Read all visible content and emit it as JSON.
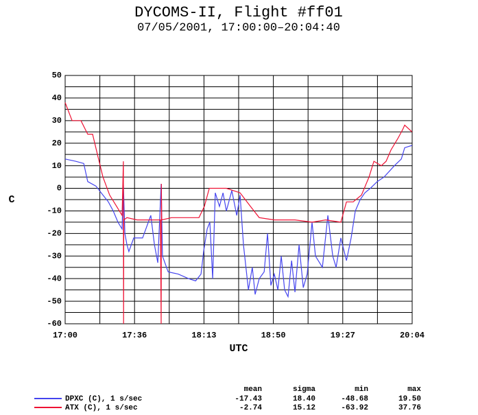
{
  "chart_data": {
    "type": "line",
    "title": "DYCOMS-II, Flight #ff01",
    "subtitle": "07/05/2001, 17:00:00–20:04:40",
    "x_label": "UTC",
    "y_label": "C",
    "xlim": [
      0,
      184.67
    ],
    "xticks": [
      {
        "value": 0,
        "label": "17:00"
      },
      {
        "value": 36.93,
        "label": "17:36"
      },
      {
        "value": 73.87,
        "label": "18:13"
      },
      {
        "value": 110.8,
        "label": "18:50"
      },
      {
        "value": 147.73,
        "label": "19:27"
      },
      {
        "value": 184.67,
        "label": "20:04"
      }
    ],
    "xminor_ticks": [
      18.47,
      55.4,
      92.33,
      129.27,
      166.2
    ],
    "ylim": [
      -60,
      50
    ],
    "yticks": [
      -60,
      -50,
      -40,
      -30,
      -20,
      -10,
      0,
      10,
      20,
      30,
      40,
      50
    ],
    "yminor_ticks": [
      -55,
      -45,
      -35,
      -25,
      -15,
      -5,
      5,
      15,
      25,
      35,
      45
    ],
    "grid": true,
    "stats_header": [
      "mean",
      "sigma",
      "min",
      "max"
    ],
    "series": [
      {
        "name": "DPXC (C), 1 s/sec",
        "color": "#4444ee",
        "stats": [
          "-17.43",
          "18.40",
          "-48.68",
          "19.50"
        ],
        "x": [
          0,
          5.5,
          9.9,
          12.0,
          16.4,
          20.1,
          23.0,
          25.6,
          28.1,
          30.3,
          31.0,
          31.8,
          32.9,
          33.9,
          36.5,
          41.2,
          45.6,
          47.5,
          49.3,
          51.1,
          51.8,
          54.8,
          60.2,
          65.7,
          69.4,
          72.3,
          73.7,
          75.6,
          77.0,
          78.5,
          79.9,
          82.1,
          84.0,
          85.8,
          88.7,
          91.3,
          93.1,
          94.9,
          97.5,
          99.6,
          101.1,
          103.3,
          105.9,
          107.7,
          109.5,
          111.3,
          113.2,
          115.0,
          116.8,
          118.6,
          120.5,
          122.3,
          124.5,
          126.7,
          128.8,
          131.4,
          133.2,
          136.9,
          139.8,
          142.4,
          144.2,
          146.7,
          149.7,
          152.2,
          154.4,
          157.0,
          159.5,
          162.4,
          166.1,
          169.7,
          175.2,
          178.9,
          180.7,
          184.6
        ],
        "values": [
          13,
          12,
          11,
          3,
          1,
          -3,
          -6,
          -10,
          -15,
          -18,
          2,
          -20,
          -25,
          -28,
          -22,
          -22,
          -12,
          -25,
          -33,
          2,
          -30,
          -37,
          -38,
          -40,
          -41,
          -38,
          -28,
          -18,
          -15,
          -40,
          -2,
          -8,
          -2,
          -10,
          -1,
          -12,
          -3,
          -25,
          -45,
          -35,
          -47,
          -40,
          -37,
          -20,
          -43,
          -38,
          -45,
          -30,
          -45,
          -48,
          -32,
          -46,
          -25,
          -44,
          -38,
          -15,
          -30,
          -35,
          -12,
          -30,
          -35,
          -22,
          -32,
          -22,
          -10,
          -5,
          -2,
          0,
          3,
          5,
          10,
          13,
          18,
          19
        ]
      },
      {
        "name": "ATX (C), 1 s/sec",
        "color": "#ee1133",
        "stats": [
          "-2.74",
          "15.12",
          "-63.92",
          "37.76"
        ],
        "x": [
          0,
          3.7,
          8.4,
          12.0,
          14.6,
          17.2,
          20.1,
          23.7,
          27.4,
          30.3,
          31.0,
          31.1,
          31.2,
          32.9,
          38.3,
          44.9,
          47.5,
          50.7,
          51.1,
          51.2,
          51.4,
          56.6,
          71.2,
          74.1,
          76.7,
          85.8,
          93.1,
          98.6,
          103.3,
          111.3,
          122.3,
          131.4,
          138.7,
          146.7,
          149.7,
          153.3,
          157.7,
          161.7,
          164.3,
          168.3,
          170.8,
          173.4,
          177.0,
          179.6,
          180.7,
          184.6
        ],
        "values": [
          38,
          30,
          30,
          24,
          24,
          15,
          5,
          -3,
          -8,
          -12,
          12,
          -60,
          -14,
          -13,
          -14,
          -14,
          -14,
          -14,
          -60,
          2,
          -14,
          -13,
          -13,
          -8,
          0,
          0,
          -2,
          -8,
          -13,
          -14,
          -14,
          -15,
          -14,
          -15,
          -6,
          -6,
          -3,
          5,
          12,
          10,
          12,
          17,
          22,
          26,
          28,
          25
        ]
      }
    ]
  }
}
